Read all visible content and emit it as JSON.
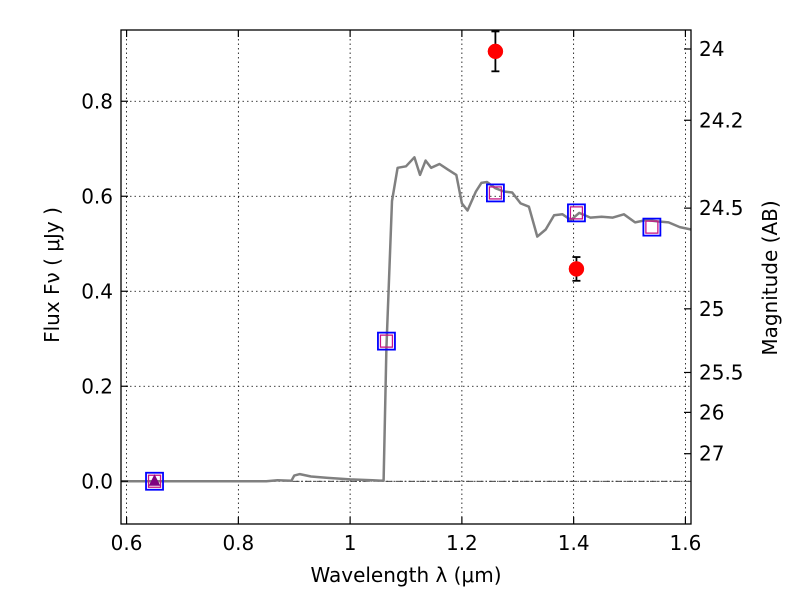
{
  "chart_data": {
    "type": "line",
    "xlabel": "Wavelength  λ (μm)",
    "ylabel": "Flux  Fν  ( μJy )",
    "ylabel_right": "Magnitude (AB)",
    "xlim": [
      0.59,
      1.61
    ],
    "ylim": [
      -0.09,
      0.95
    ],
    "x_ticks": [
      0.6,
      0.8,
      1.0,
      1.2,
      1.4,
      1.6
    ],
    "x_tick_labels": [
      "0.6",
      "0.8",
      "1",
      "1.2",
      "1.4",
      "1.6"
    ],
    "y_ticks": [
      0.0,
      0.2,
      0.4,
      0.6,
      0.8
    ],
    "y_tick_labels": [
      "0.0",
      "0.2",
      "0.4",
      "0.6",
      "0.8"
    ],
    "mag_ticks": [
      {
        "label": "24",
        "flux": 0.91
      },
      {
        "label": "24.2",
        "flux": 0.76
      },
      {
        "label": "24.5",
        "flux": 0.575
      },
      {
        "label": "25",
        "flux": 0.363
      },
      {
        "label": "25.5",
        "flux": 0.229
      },
      {
        "label": "26",
        "flux": 0.145
      },
      {
        "label": "27",
        "flux": 0.058
      }
    ],
    "grid": true,
    "zero_line": true,
    "colors": {
      "model": "#808080",
      "photometry": "#ff0000",
      "model_bands": "#0000ff",
      "band_inner": "#c71585",
      "upper_limit": "#800080",
      "frame": "#000000"
    },
    "series": [
      {
        "kind": "line",
        "x": [
          0.59,
          0.64,
          0.7,
          0.76,
          0.82,
          0.85,
          0.87,
          0.895,
          0.9,
          0.91,
          0.93,
          0.96,
          1.0,
          1.04,
          1.06,
          1.065,
          1.075,
          1.085,
          1.1,
          1.115,
          1.125,
          1.135,
          1.145,
          1.16,
          1.175,
          1.19,
          1.2,
          1.21,
          1.225,
          1.235,
          1.245,
          1.26,
          1.275,
          1.29,
          1.305,
          1.32,
          1.335,
          1.35,
          1.365,
          1.38,
          1.395,
          1.41,
          1.43,
          1.45,
          1.47,
          1.49,
          1.51,
          1.53,
          1.55,
          1.57,
          1.59,
          1.61
        ],
        "y": [
          0.0,
          0.0,
          0.0,
          0.0,
          0.0,
          0.0,
          0.002,
          0.001,
          0.012,
          0.015,
          0.01,
          0.007,
          0.004,
          0.002,
          0.001,
          0.28,
          0.59,
          0.66,
          0.663,
          0.682,
          0.645,
          0.675,
          0.66,
          0.668,
          0.656,
          0.645,
          0.585,
          0.57,
          0.61,
          0.628,
          0.63,
          0.617,
          0.61,
          0.608,
          0.585,
          0.578,
          0.515,
          0.53,
          0.56,
          0.562,
          0.55,
          0.565,
          0.555,
          0.557,
          0.555,
          0.562,
          0.545,
          0.55,
          0.547,
          0.545,
          0.535,
          0.53
        ]
      },
      {
        "kind": "points",
        "x": [
          1.26,
          1.405
        ],
        "y": [
          0.905,
          0.447
        ],
        "yerr": [
          0.042,
          0.025
        ]
      },
      {
        "kind": "squares",
        "x": [
          0.65,
          1.065,
          1.26,
          1.405,
          1.54
        ],
        "y": [
          0.0,
          0.295,
          0.607,
          0.565,
          0.535
        ]
      },
      {
        "kind": "upper_limit",
        "x": [
          0.65
        ],
        "y": [
          0.0
        ]
      }
    ]
  }
}
